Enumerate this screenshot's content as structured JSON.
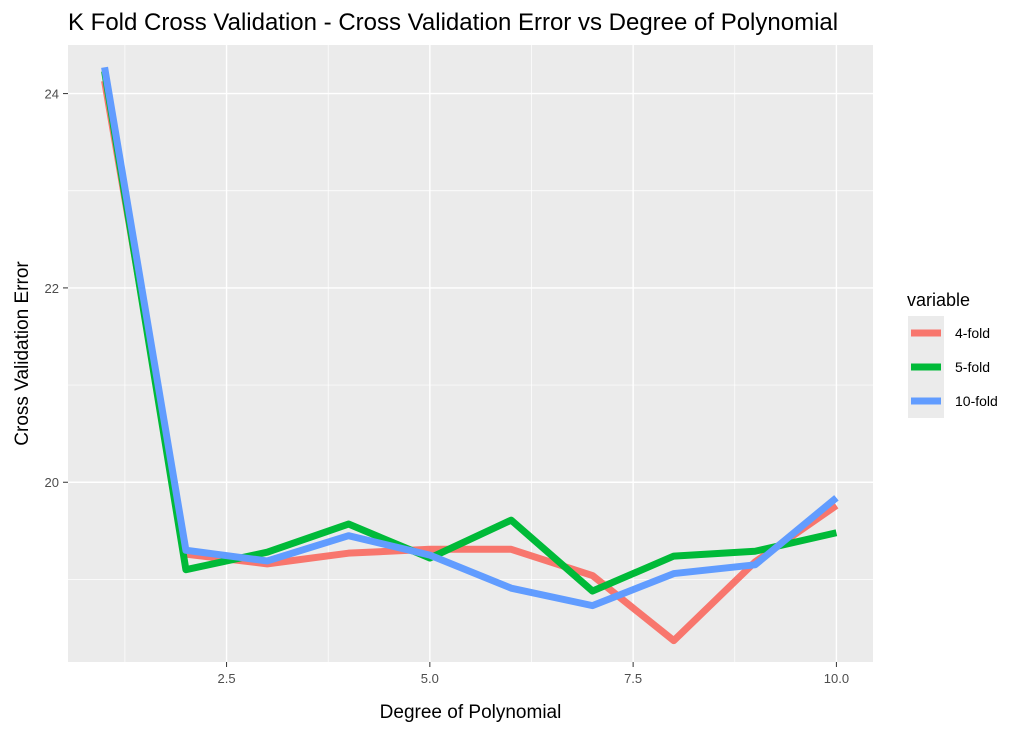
{
  "chart_data": {
    "type": "line",
    "title": "K Fold Cross Validation - Cross Validation Error vs Degree of Polynomial",
    "xlabel": "Degree of Polynomial",
    "ylabel": "Cross Validation Error",
    "x": [
      1,
      2,
      3,
      4,
      5,
      6,
      7,
      8,
      9,
      10
    ],
    "xlim": [
      0.55,
      10.45
    ],
    "ylim": [
      18.15,
      24.5
    ],
    "x_ticks": [
      2.5,
      5.0,
      7.5,
      10.0
    ],
    "x_tick_labels": [
      "2.5",
      "5.0",
      "7.5",
      "10.0"
    ],
    "y_ticks": [
      20,
      22,
      24
    ],
    "y_tick_labels": [
      "20",
      "22",
      "24"
    ],
    "grid": true,
    "legend": {
      "title": "variable",
      "position": "right"
    },
    "series": [
      {
        "name": "4-fold",
        "color": "#F8766D",
        "values": [
          24.13,
          19.26,
          19.16,
          19.27,
          19.31,
          19.31,
          19.04,
          18.37,
          19.18,
          19.76
        ]
      },
      {
        "name": "5-fold",
        "color": "#00BA38",
        "values": [
          24.23,
          19.1,
          19.28,
          19.57,
          19.22,
          19.61,
          18.88,
          19.24,
          19.29,
          19.48
        ]
      },
      {
        "name": "10-fold",
        "color": "#619CFF",
        "values": [
          24.27,
          19.3,
          19.19,
          19.45,
          19.25,
          18.91,
          18.73,
          19.06,
          19.15,
          19.84
        ]
      }
    ]
  }
}
